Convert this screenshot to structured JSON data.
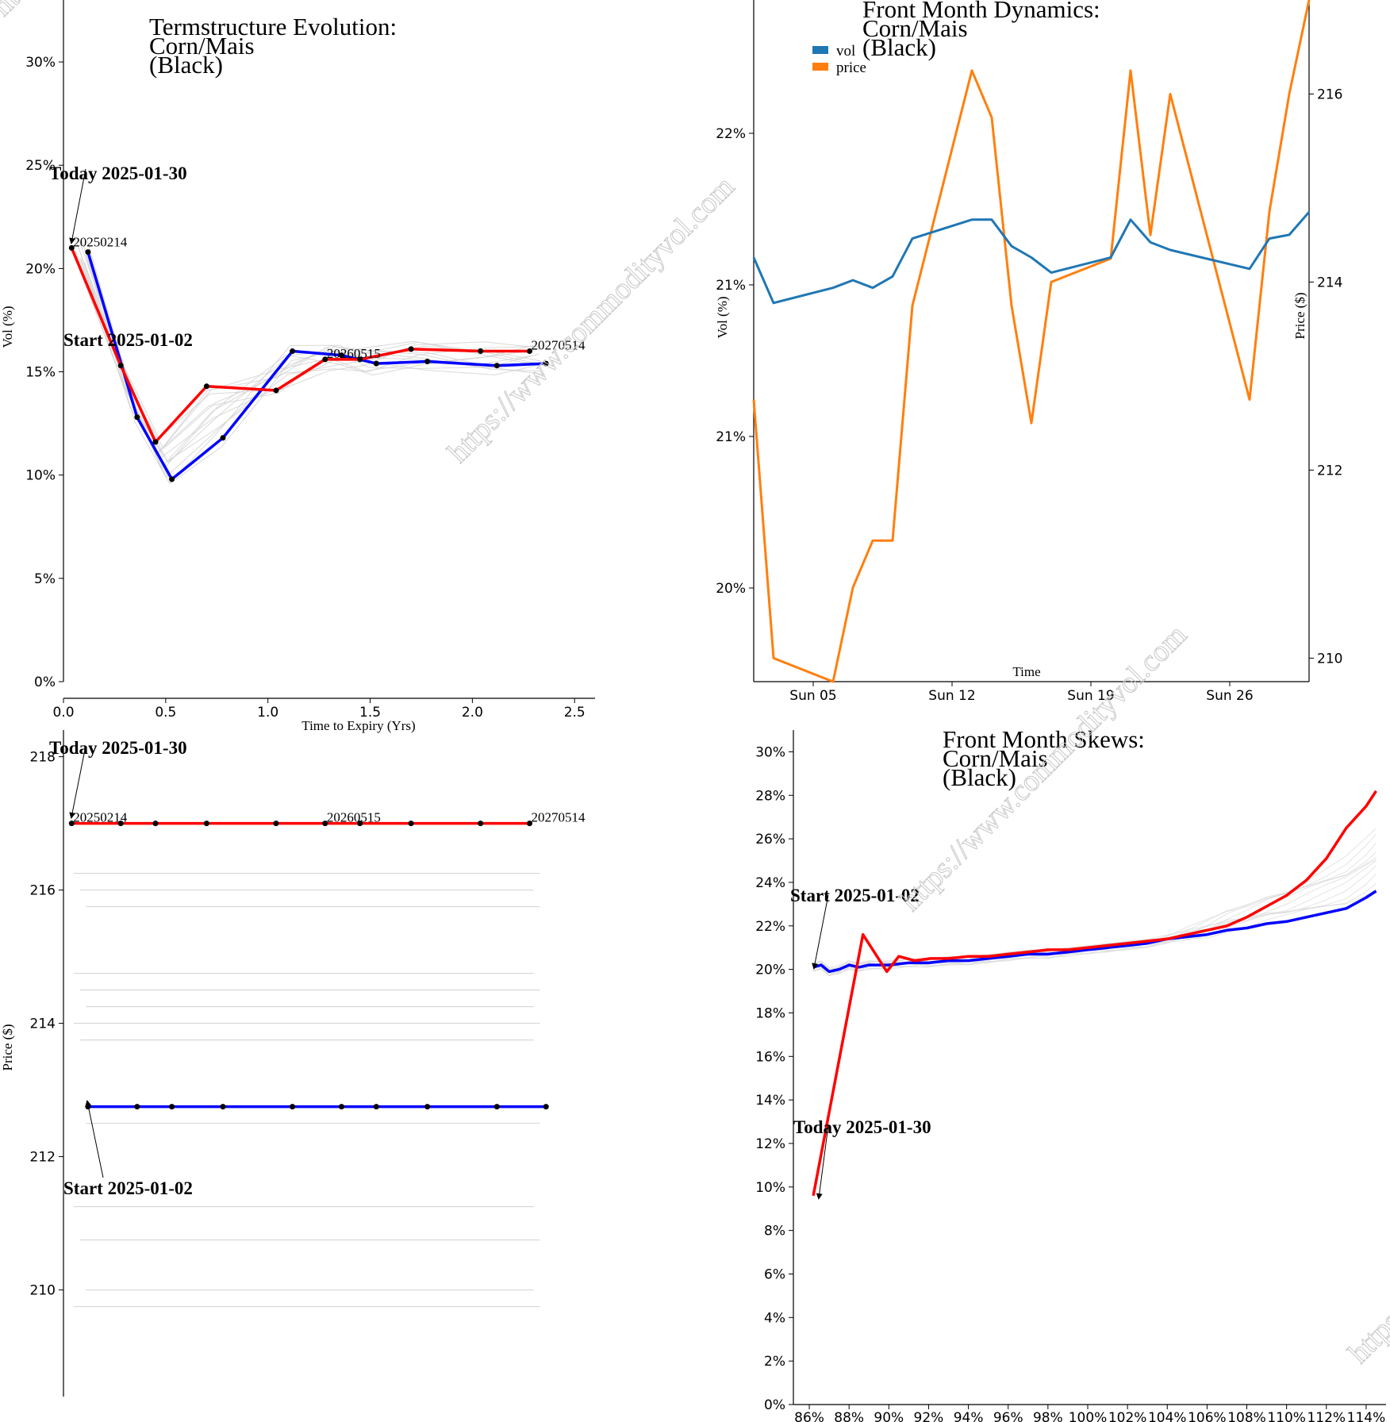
{
  "watermark": "https://www.commodityvol.com",
  "chart_data": [
    {
      "id": "termstructure",
      "type": "line",
      "title": [
        "Termstructure Evolution:",
        "Corn/Mais",
        "(Black)"
      ],
      "xlabel": "Time to Expiry (Yrs)",
      "ylabel": "Vol (%)",
      "xlim": [
        0,
        2.6
      ],
      "ylim": [
        0,
        0.33
      ],
      "xticks": [
        0,
        0.5,
        1.0,
        1.5,
        2.0,
        2.5
      ],
      "xtick_labels": [
        "0.0",
        "0.5",
        "1.0",
        "1.5",
        "2.0",
        "2.5"
      ],
      "yticks": [
        0,
        0.05,
        0.1,
        0.15,
        0.2,
        0.25,
        0.3
      ],
      "ytick_labels": [
        "0%",
        "5%",
        "10%",
        "15%",
        "20%",
        "25%",
        "30%"
      ],
      "series": [
        {
          "name": "Today 2025-01-30",
          "color": "#ff0000",
          "x": [
            0.04,
            0.28,
            0.45,
            0.7,
            1.04,
            1.28,
            1.45,
            1.7,
            2.04,
            2.28
          ],
          "y": [
            0.21,
            0.153,
            0.116,
            0.143,
            0.141,
            0.156,
            0.156,
            0.161,
            0.16,
            0.16
          ]
        },
        {
          "name": "Start 2025-01-02",
          "color": "#0000ff",
          "x": [
            0.12,
            0.36,
            0.53,
            0.78,
            1.12,
            1.36,
            1.53,
            1.78,
            2.12,
            2.36
          ],
          "y": [
            0.208,
            0.128,
            0.098,
            0.118,
            0.16,
            0.158,
            0.154,
            0.155,
            0.153,
            0.154
          ]
        }
      ],
      "contract_labels": [
        {
          "text": "20250214",
          "x": 0.04,
          "y": 0.21
        },
        {
          "text": "20260515",
          "x": 1.28,
          "y": 0.156
        },
        {
          "text": "20270514",
          "x": 2.28,
          "y": 0.16
        }
      ],
      "annotations": [
        {
          "text": "Today 2025-01-30"
        },
        {
          "text": "Start 2025-01-02"
        }
      ]
    },
    {
      "id": "dynamics",
      "type": "line",
      "title": [
        "Front Month Dynamics:",
        "Corn/Mais",
        "(Black)"
      ],
      "xlabel": "Time",
      "ylabel": "Vol (%)",
      "ylabel_right": "Price ($)",
      "xtick_labels": [
        "Sun 05",
        "Sun 12",
        "Sun 19",
        "Sun 26"
      ],
      "ytick_labels_left": [
        "20%",
        "21%",
        "21%",
        "22%"
      ],
      "ylim_left": [
        0.1969,
        0.2149
      ],
      "ylim_right": [
        209.75,
        217.0
      ],
      "yticks_right": [
        210,
        212,
        214,
        216
      ],
      "legend": [
        {
          "name": "vol",
          "color": "#1f77b4"
        },
        {
          "name": "price",
          "color": "#ff7f0e"
        }
      ],
      "x_days": [
        2,
        3,
        6,
        7,
        8,
        9,
        10,
        13,
        14,
        15,
        16,
        17,
        20,
        21,
        22,
        23,
        27,
        28,
        29,
        30
      ],
      "vol": [
        0.2081,
        0.2069,
        0.2073,
        0.2075,
        0.2073,
        0.2076,
        0.2086,
        0.2091,
        0.2091,
        0.2084,
        0.2081,
        0.2077,
        0.2081,
        0.2091,
        0.2085,
        0.2083,
        0.2078,
        0.2086,
        0.2087,
        0.2093
      ],
      "price": [
        212.75,
        210.0,
        209.75,
        210.75,
        211.25,
        211.25,
        213.75,
        216.25,
        215.75,
        213.75,
        212.5,
        214.0,
        214.25,
        216.25,
        214.5,
        216.0,
        212.75,
        214.75,
        216.0,
        217.0
      ]
    },
    {
      "id": "price_termstructure",
      "type": "line",
      "ylabel": "Price ($)",
      "xlim": [
        0,
        2.6
      ],
      "ylim": [
        208.4,
        218.4
      ],
      "yticks": [
        210,
        212,
        214,
        216,
        218
      ],
      "ytick_labels": [
        "210",
        "212",
        "214",
        "216",
        "218"
      ],
      "series": [
        {
          "name": "Today 2025-01-30",
          "color": "#ff0000",
          "x": [
            0.04,
            0.28,
            0.45,
            0.7,
            1.04,
            1.28,
            1.45,
            1.7,
            2.04,
            2.28
          ],
          "y": [
            217.0,
            217.0,
            217.0,
            217.0,
            217.0,
            217.0,
            217.0,
            217.0,
            217.0,
            217.0
          ]
        },
        {
          "name": "Start 2025-01-02",
          "color": "#0000ff",
          "x": [
            0.12,
            0.36,
            0.53,
            0.78,
            1.12,
            1.36,
            1.53,
            1.78,
            2.12,
            2.36
          ],
          "y": [
            212.75,
            212.75,
            212.75,
            212.75,
            212.75,
            212.75,
            212.75,
            212.75,
            212.75,
            212.75
          ]
        }
      ],
      "history_levels": [
        216.25,
        216.0,
        215.75,
        214.75,
        214.5,
        214.25,
        214.0,
        213.75,
        212.5,
        211.25,
        210.75,
        210.0,
        209.75
      ],
      "contract_labels": [
        {
          "text": "20250214",
          "x": 0.04,
          "y": 217.0
        },
        {
          "text": "20260515",
          "x": 1.28,
          "y": 217.0
        },
        {
          "text": "20270514",
          "x": 2.28,
          "y": 217.0
        }
      ],
      "annotations": [
        {
          "text": "Today 2025-01-30"
        },
        {
          "text": "Start 2025-01-02"
        }
      ]
    },
    {
      "id": "skews",
      "type": "line",
      "title": [
        "Front Month Skews:",
        "Corn/Mais",
        "(Black)"
      ],
      "xlim": [
        85,
        115
      ],
      "ylim": [
        0,
        0.31
      ],
      "xticks": [
        86,
        88,
        90,
        92,
        94,
        96,
        98,
        100,
        102,
        104,
        106,
        108,
        110,
        112,
        114
      ],
      "xtick_labels": [
        "86%",
        "88%",
        "90%",
        "92%",
        "94%",
        "96%",
        "98%",
        "100%",
        "102%",
        "104%",
        "106%",
        "108%",
        "110%",
        "112%",
        "114%"
      ],
      "yticks": [
        0,
        0.02,
        0.04,
        0.06,
        0.08,
        0.1,
        0.12,
        0.14,
        0.16,
        0.18,
        0.2,
        0.22,
        0.24,
        0.26,
        0.28,
        0.3
      ],
      "ytick_labels": [
        "0%",
        "2%",
        "4%",
        "6%",
        "8%",
        "10%",
        "12%",
        "14%",
        "16%",
        "18%",
        "20%",
        "22%",
        "24%",
        "26%",
        "28%",
        "30%"
      ],
      "series": [
        {
          "name": "Today 2025-01-30",
          "color": "#ff0000",
          "x": [
            86.2,
            88.7,
            89.9,
            90.5,
            91.3,
            92.1,
            93,
            94,
            95,
            96,
            97,
            98,
            99,
            100,
            101,
            102,
            103,
            104,
            105,
            106,
            107,
            108,
            109,
            110,
            111,
            112,
            113,
            114,
            114.5
          ],
          "y": [
            0.096,
            0.216,
            0.199,
            0.206,
            0.204,
            0.205,
            0.205,
            0.206,
            0.206,
            0.207,
            0.208,
            0.209,
            0.209,
            0.21,
            0.211,
            0.212,
            0.213,
            0.214,
            0.216,
            0.218,
            0.22,
            0.224,
            0.229,
            0.234,
            0.241,
            0.251,
            0.265,
            0.275,
            0.282
          ]
        },
        {
          "name": "Start 2025-01-02",
          "color": "#0000ff",
          "x": [
            86.2,
            86.6,
            87,
            87.5,
            88,
            88.5,
            89,
            90,
            91,
            92,
            93,
            94,
            95,
            96,
            97,
            98,
            99,
            100,
            101,
            102,
            103,
            104,
            105,
            106,
            107,
            108,
            109,
            110,
            111,
            112,
            113,
            114,
            114.5
          ],
          "y": [
            0.201,
            0.202,
            0.199,
            0.2,
            0.202,
            0.201,
            0.202,
            0.202,
            0.203,
            0.203,
            0.204,
            0.204,
            0.205,
            0.206,
            0.207,
            0.207,
            0.208,
            0.209,
            0.21,
            0.211,
            0.212,
            0.214,
            0.215,
            0.216,
            0.218,
            0.219,
            0.221,
            0.222,
            0.224,
            0.226,
            0.228,
            0.233,
            0.236
          ]
        }
      ],
      "annotations": [
        {
          "text": "Start 2025-01-02"
        },
        {
          "text": "Today 2025-01-30"
        }
      ]
    }
  ]
}
